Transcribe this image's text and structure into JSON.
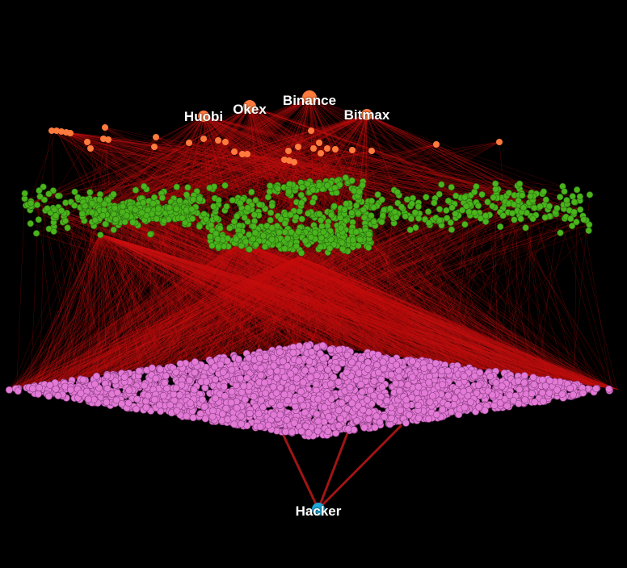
{
  "labels": {
    "huobi": "Huobi",
    "okex": "Okex",
    "binance": "Binance",
    "bitmax": "Bitmax",
    "hacker": "Hacker"
  },
  "colors": {
    "background": "#000000",
    "edge": "#c81010",
    "exchange_node": "#ff7a3d",
    "intermediate_node": "#49b41c",
    "victim_node": "#e27ad6",
    "hacker_node": "#1aa7d8"
  },
  "layers": [
    {
      "name": "exchanges",
      "node_color": "exchange_node"
    },
    {
      "name": "intermediate-accounts",
      "node_color": "intermediate_node"
    },
    {
      "name": "victim-accounts",
      "node_color": "victim_node"
    },
    {
      "name": "hacker",
      "node_color": "hacker_node"
    }
  ]
}
